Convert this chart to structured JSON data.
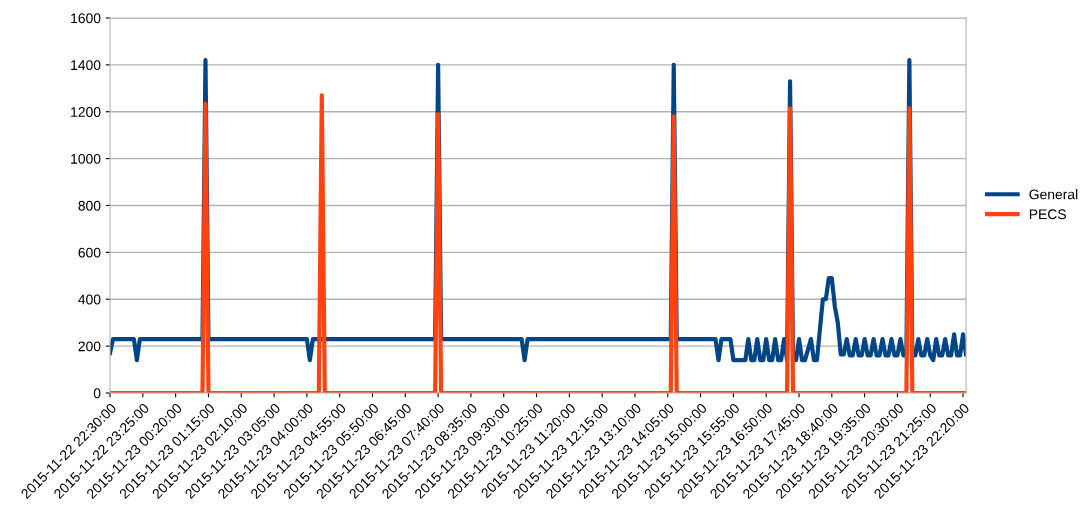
{
  "chart_data": {
    "type": "line",
    "legend": "right",
    "grid": "y",
    "marker": "none",
    "line_style": "solid",
    "ylim": [
      0,
      1600
    ],
    "yticks": [
      0,
      200,
      400,
      600,
      800,
      1000,
      1200,
      1400,
      1600
    ],
    "xlim": [
      "2015-11-22T22:30",
      "2015-11-23T22:25"
    ],
    "xticks": [
      {
        "value": "2015-11-22T22:30",
        "label": "2015-11-22 22:30:00"
      },
      {
        "value": "2015-11-22T23:25",
        "label": "2015-11-22 23:25:00"
      },
      {
        "value": "2015-11-23T00:20",
        "label": "2015-11-23 00:20:00"
      },
      {
        "value": "2015-11-23T01:15",
        "label": "2015-11-23 01:15:00"
      },
      {
        "value": "2015-11-23T02:10",
        "label": "2015-11-23 02:10:00"
      },
      {
        "value": "2015-11-23T03:05",
        "label": "2015-11-23 03:05:00"
      },
      {
        "value": "2015-11-23T04:00",
        "label": "2015-11-23 04:00:00"
      },
      {
        "value": "2015-11-23T04:55",
        "label": "2015-11-23 04:55:00"
      },
      {
        "value": "2015-11-23T05:50",
        "label": "2015-11-23 05:50:00"
      },
      {
        "value": "2015-11-23T06:45",
        "label": "2015-11-23 06:45:00"
      },
      {
        "value": "2015-11-23T07:40",
        "label": "2015-11-23 07:40:00"
      },
      {
        "value": "2015-11-23T08:35",
        "label": "2015-11-23 08:35:00"
      },
      {
        "value": "2015-11-23T09:30",
        "label": "2015-11-23 09:30:00"
      },
      {
        "value": "2015-11-23T10:25",
        "label": "2015-11-23 10:25:00"
      },
      {
        "value": "2015-11-23T11:20",
        "label": "2015-11-23 11:20:00"
      },
      {
        "value": "2015-11-23T12:15",
        "label": "2015-11-23 12:15:00"
      },
      {
        "value": "2015-11-23T13:10",
        "label": "2015-11-23 13:10:00"
      },
      {
        "value": "2015-11-23T14:05",
        "label": "2015-11-23 14:05:00"
      },
      {
        "value": "2015-11-23T15:00",
        "label": "2015-11-23 15:00:00"
      },
      {
        "value": "2015-11-23T15:55",
        "label": "2015-11-23 15:55:00"
      },
      {
        "value": "2015-11-23T16:50",
        "label": "2015-11-23 16:50:00"
      },
      {
        "value": "2015-11-23T17:45",
        "label": "2015-11-23 17:45:00"
      },
      {
        "value": "2015-11-23T18:40",
        "label": "2015-11-23 18:40:00"
      },
      {
        "value": "2015-11-23T19:35",
        "label": "2015-11-23 19:35:00"
      },
      {
        "value": "2015-11-23T20:30",
        "label": "2015-11-23 20:30:00"
      },
      {
        "value": "2015-11-23T21:25",
        "label": "2015-11-23 21:25:00"
      },
      {
        "value": "2015-11-23T22:20",
        "label": "2015-11-23 22:20:00"
      }
    ],
    "series": [
      {
        "name": "General",
        "color": "#004586",
        "x": [
          "2015-11-22T22:30",
          "2015-11-22T22:35",
          "2015-11-22T23:10",
          "2015-11-22T23:15",
          "2015-11-22T23:20",
          "2015-11-23T01:05",
          "2015-11-23T01:10",
          "2015-11-23T01:15",
          "2015-11-23T04:00",
          "2015-11-23T04:05",
          "2015-11-23T04:10",
          "2015-11-23T07:35",
          "2015-11-23T07:40",
          "2015-11-23T07:45",
          "2015-11-23T10:00",
          "2015-11-23T10:05",
          "2015-11-23T10:10",
          "2015-11-23T14:10",
          "2015-11-23T14:15",
          "2015-11-23T14:20",
          "2015-11-23T15:25",
          "2015-11-23T15:30",
          "2015-11-23T15:35",
          "2015-11-23T15:50",
          "2015-11-23T15:55",
          "2015-11-23T16:15",
          "2015-11-23T16:20",
          "2015-11-23T16:25",
          "2015-11-23T16:30",
          "2015-11-23T16:35",
          "2015-11-23T16:40",
          "2015-11-23T16:45",
          "2015-11-23T16:50",
          "2015-11-23T16:55",
          "2015-11-23T17:00",
          "2015-11-23T17:05",
          "2015-11-23T17:10",
          "2015-11-23T17:15",
          "2015-11-23T17:20",
          "2015-11-23T17:25",
          "2015-11-23T17:30",
          "2015-11-23T17:35",
          "2015-11-23T17:40",
          "2015-11-23T17:45",
          "2015-11-23T17:50",
          "2015-11-23T17:55",
          "2015-11-23T18:05",
          "2015-11-23T18:10",
          "2015-11-23T18:15",
          "2015-11-23T18:25",
          "2015-11-23T18:30",
          "2015-11-23T18:35",
          "2015-11-23T18:40",
          "2015-11-23T18:45",
          "2015-11-23T18:50",
          "2015-11-23T18:55",
          "2015-11-23T19:00",
          "2015-11-23T19:05",
          "2015-11-23T19:10",
          "2015-11-23T19:15",
          "2015-11-23T19:20",
          "2015-11-23T19:25",
          "2015-11-23T19:30",
          "2015-11-23T19:35",
          "2015-11-23T19:40",
          "2015-11-23T19:45",
          "2015-11-23T19:50",
          "2015-11-23T19:55",
          "2015-11-23T20:00",
          "2015-11-23T20:05",
          "2015-11-23T20:10",
          "2015-11-23T20:15",
          "2015-11-23T20:20",
          "2015-11-23T20:25",
          "2015-11-23T20:30",
          "2015-11-23T20:35",
          "2015-11-23T20:40",
          "2015-11-23T20:45",
          "2015-11-23T20:50",
          "2015-11-23T20:55",
          "2015-11-23T21:00",
          "2015-11-23T21:05",
          "2015-11-23T21:10",
          "2015-11-23T21:15",
          "2015-11-23T21:20",
          "2015-11-23T21:25",
          "2015-11-23T21:30",
          "2015-11-23T21:35",
          "2015-11-23T21:40",
          "2015-11-23T21:45",
          "2015-11-23T21:50",
          "2015-11-23T21:55",
          "2015-11-23T22:00",
          "2015-11-23T22:05",
          "2015-11-23T22:10",
          "2015-11-23T22:15",
          "2015-11-23T22:20",
          "2015-11-23T22:25"
        ],
        "values": [
          170,
          230,
          230,
          140,
          230,
          230,
          1420,
          230,
          230,
          140,
          230,
          230,
          1400,
          230,
          230,
          140,
          230,
          230,
          1400,
          230,
          230,
          140,
          230,
          230,
          140,
          140,
          230,
          140,
          140,
          230,
          140,
          140,
          230,
          140,
          140,
          230,
          140,
          140,
          230,
          140,
          1330,
          140,
          140,
          230,
          140,
          140,
          230,
          140,
          140,
          400,
          400,
          490,
          490,
          370,
          300,
          165,
          165,
          230,
          160,
          160,
          230,
          160,
          160,
          230,
          160,
          160,
          230,
          160,
          160,
          230,
          160,
          160,
          230,
          160,
          160,
          230,
          160,
          160,
          1420,
          160,
          160,
          230,
          160,
          160,
          230,
          160,
          140,
          230,
          160,
          160,
          230,
          160,
          160,
          250,
          160,
          160,
          250,
          165
        ]
      },
      {
        "name": "PECS",
        "color": "#ff420e",
        "x": [
          "2015-11-22T22:30",
          "2015-11-23T01:05",
          "2015-11-23T01:10",
          "2015-11-23T01:15",
          "2015-11-23T04:20",
          "2015-11-23T04:25",
          "2015-11-23T04:30",
          "2015-11-23T07:35",
          "2015-11-23T07:40",
          "2015-11-23T07:45",
          "2015-11-23T14:10",
          "2015-11-23T14:15",
          "2015-11-23T14:20",
          "2015-11-23T17:25",
          "2015-11-23T17:30",
          "2015-11-23T17:35",
          "2015-11-23T20:45",
          "2015-11-23T20:50",
          "2015-11-23T20:55",
          "2015-11-23T22:25"
        ],
        "values": [
          0,
          0,
          1235,
          0,
          0,
          1270,
          0,
          0,
          1190,
          0,
          0,
          1180,
          0,
          0,
          1215,
          0,
          0,
          1215,
          0,
          0
        ]
      }
    ]
  }
}
